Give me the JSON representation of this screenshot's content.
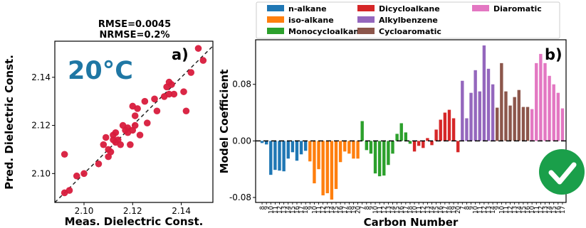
{
  "figure": {
    "badge_icon": "checkmark-circle-icon",
    "colors": {
      "badge": "#1a9f4a",
      "temperature_label": "#1f77a4",
      "scatter_points": "#d81b3c"
    }
  },
  "chart_data": [
    {
      "type": "scatter",
      "panel_label": "a)",
      "title": "RMSE=0.0045",
      "subtitle": "NRMSE=0.2%",
      "annotation": "20°C",
      "xlabel": "Meas. Dielectric Const.",
      "ylabel": "Pred. Dielectric Const.",
      "xlim": [
        2.088,
        2.153
      ],
      "ylim": [
        2.088,
        2.155
      ],
      "xticks": [
        "2.10",
        "2.12",
        "2.14"
      ],
      "yticks": [
        "2.10",
        "2.12",
        "2.14"
      ],
      "xtick_values": [
        2.1,
        2.12,
        2.14
      ],
      "ytick_values": [
        2.1,
        2.12,
        2.14
      ],
      "reference_line": "y = x (dashed)",
      "grid": false,
      "points": [
        [
          2.092,
          2.108
        ],
        [
          2.092,
          2.092
        ],
        [
          2.094,
          2.093
        ],
        [
          2.097,
          2.099
        ],
        [
          2.1,
          2.1
        ],
        [
          2.106,
          2.104
        ],
        [
          2.108,
          2.112
        ],
        [
          2.109,
          2.115
        ],
        [
          2.11,
          2.11
        ],
        [
          2.11,
          2.107
        ],
        [
          2.111,
          2.109
        ],
        [
          2.112,
          2.114
        ],
        [
          2.112,
          2.116
        ],
        [
          2.113,
          2.113
        ],
        [
          2.113,
          2.117
        ],
        [
          2.114,
          2.114
        ],
        [
          2.115,
          2.112
        ],
        [
          2.116,
          2.12
        ],
        [
          2.117,
          2.118
        ],
        [
          2.118,
          2.119
        ],
        [
          2.118,
          2.117
        ],
        [
          2.119,
          2.112
        ],
        [
          2.12,
          2.118
        ],
        [
          2.12,
          2.128
        ],
        [
          2.121,
          2.12
        ],
        [
          2.121,
          2.124
        ],
        [
          2.122,
          2.127
        ],
        [
          2.123,
          2.116
        ],
        [
          2.125,
          2.13
        ],
        [
          2.126,
          2.121
        ],
        [
          2.129,
          2.131
        ],
        [
          2.13,
          2.126
        ],
        [
          2.133,
          2.132
        ],
        [
          2.134,
          2.136
        ],
        [
          2.135,
          2.138
        ],
        [
          2.135,
          2.133
        ],
        [
          2.136,
          2.137
        ],
        [
          2.137,
          2.133
        ],
        [
          2.141,
          2.134
        ],
        [
          2.142,
          2.126
        ],
        [
          2.144,
          2.142
        ],
        [
          2.147,
          2.152
        ],
        [
          2.149,
          2.147
        ]
      ]
    },
    {
      "type": "bar",
      "panel_label": "b)",
      "xlabel": "Carbon Number",
      "ylabel": "Model Coefficient",
      "ylim": [
        -0.087,
        0.143
      ],
      "yticks": [
        "-0.08",
        "0.00",
        "0.08"
      ],
      "ytick_values": [
        -0.08,
        0.0,
        0.08
      ],
      "reference_line": "y = 0 (dashed)",
      "grid": false,
      "legend_position": "top",
      "series": [
        {
          "name": "n-alkane",
          "color": "#1f77b4",
          "categories": [
            "8",
            "9",
            "10",
            "11",
            "12",
            "13",
            "14",
            "15",
            "16",
            "17",
            "18"
          ],
          "values": [
            -0.003,
            -0.005,
            -0.048,
            -0.041,
            -0.042,
            -0.043,
            -0.025,
            -0.016,
            -0.028,
            -0.019,
            -0.014
          ]
        },
        {
          "name": "iso-alkane",
          "color": "#ff7f0e",
          "categories": [
            "9",
            "10",
            "11",
            "12",
            "13",
            "14",
            "15",
            "16",
            "17",
            "18",
            "19",
            "20"
          ],
          "values": [
            -0.029,
            -0.06,
            -0.04,
            -0.077,
            -0.074,
            -0.083,
            -0.068,
            -0.03,
            -0.015,
            -0.018,
            -0.025,
            -0.025
          ]
        },
        {
          "name": "Monocycloalkane",
          "color": "#2ca02c",
          "categories": [
            "7",
            "8",
            "9",
            "10",
            "11",
            "12",
            "13",
            "14",
            "15",
            "16",
            "17",
            "18"
          ],
          "values": [
            0.028,
            -0.013,
            -0.018,
            -0.046,
            -0.05,
            -0.049,
            -0.034,
            -0.018,
            0.01,
            0.025,
            0.012,
            -0.004
          ]
        },
        {
          "name": "Dicycloalkane",
          "color": "#d62728",
          "categories": [
            "10",
            "11",
            "12",
            "13",
            "14",
            "15",
            "16",
            "17",
            "18",
            "19",
            "20"
          ],
          "values": [
            -0.015,
            -0.007,
            -0.01,
            0.004,
            -0.006,
            0.016,
            0.03,
            0.04,
            0.044,
            0.032,
            -0.016
          ]
        },
        {
          "name": "Alkylbenzene",
          "color": "#9467bd",
          "categories": [
            "7",
            "8",
            "9",
            "10",
            "11",
            "12",
            "13",
            "14"
          ],
          "values": [
            0.085,
            0.032,
            0.068,
            0.1,
            0.07,
            0.135,
            0.102,
            0.08
          ]
        },
        {
          "name": "Cycloaromatic",
          "color": "#8c564b",
          "categories": [
            "9",
            "10",
            "11",
            "12",
            "13",
            "14",
            "15",
            "16"
          ],
          "values": [
            0.047,
            0.11,
            0.07,
            0.05,
            0.062,
            0.072,
            0.048,
            0.048
          ]
        },
        {
          "name": "Diaromatic",
          "color": "#e377c2",
          "categories": [
            "10",
            "11",
            "12",
            "13",
            "14",
            "15",
            "16",
            "17"
          ],
          "values": [
            0.045,
            0.11,
            0.123,
            0.11,
            0.092,
            0.08,
            0.068,
            0.046
          ]
        }
      ]
    }
  ]
}
